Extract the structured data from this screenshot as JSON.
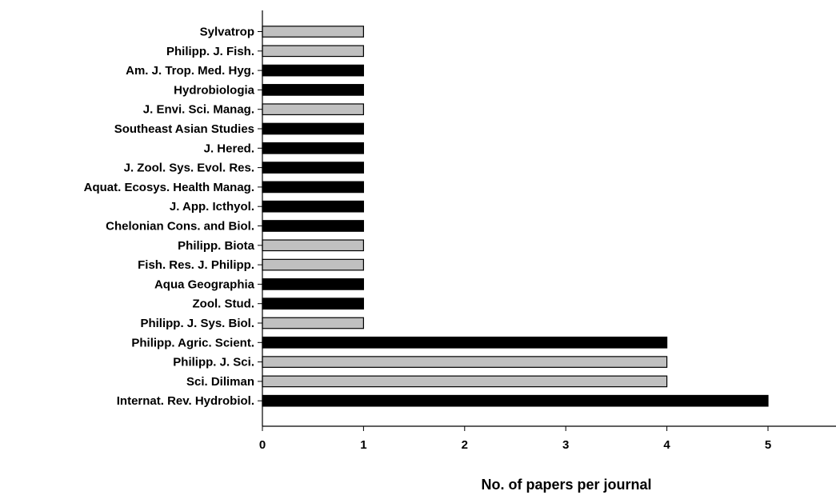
{
  "chart_data": {
    "type": "bar",
    "orientation": "horizontal",
    "title": "",
    "xlabel": "No. of papers per journal",
    "ylabel": "",
    "xlim": [
      0,
      5.7
    ],
    "xticks": [
      "0",
      "1",
      "2",
      "3",
      "4",
      "5"
    ],
    "grid": false,
    "legend": "none",
    "colors": {
      "black": "#000000",
      "gray": "#c0c0c0",
      "outline": "#000000"
    },
    "bars": [
      {
        "category": "Sylvatrop",
        "value": 1,
        "color": "gray"
      },
      {
        "category": "Philipp. J. Fish.",
        "value": 1,
        "color": "gray"
      },
      {
        "category": "Am. J. Trop. Med. Hyg.",
        "value": 1,
        "color": "black"
      },
      {
        "category": "Hydrobiologia",
        "value": 1,
        "color": "black"
      },
      {
        "category": "J. Envi. Sci. Manag.",
        "value": 1,
        "color": "gray"
      },
      {
        "category": "Southeast Asian Studies",
        "value": 1,
        "color": "black"
      },
      {
        "category": "J. Hered.",
        "value": 1,
        "color": "black"
      },
      {
        "category": "J. Zool. Sys. Evol. Res.",
        "value": 1,
        "color": "black"
      },
      {
        "category": "Aquat. Ecosys. Health Manag.",
        "value": 1,
        "color": "black"
      },
      {
        "category": "J. App. Icthyol.",
        "value": 1,
        "color": "black"
      },
      {
        "category": "Chelonian Cons. and Biol.",
        "value": 1,
        "color": "black"
      },
      {
        "category": "Philipp. Biota",
        "value": 1,
        "color": "gray"
      },
      {
        "category": "Fish. Res. J. Philipp.",
        "value": 1,
        "color": "gray"
      },
      {
        "category": "Aqua Geographia",
        "value": 1,
        "color": "black"
      },
      {
        "category": "Zool. Stud.",
        "value": 1,
        "color": "black"
      },
      {
        "category": "Philipp. J. Sys. Biol.",
        "value": 1,
        "color": "gray"
      },
      {
        "category": "Philipp. Agric. Scient.",
        "value": 4,
        "color": "black"
      },
      {
        "category": "Philipp. J. Sci.",
        "value": 4,
        "color": "gray"
      },
      {
        "category": "Sci. Diliman",
        "value": 4,
        "color": "gray"
      },
      {
        "category": "Internat. Rev. Hydrobiol.",
        "value": 5,
        "color": "black"
      }
    ]
  }
}
